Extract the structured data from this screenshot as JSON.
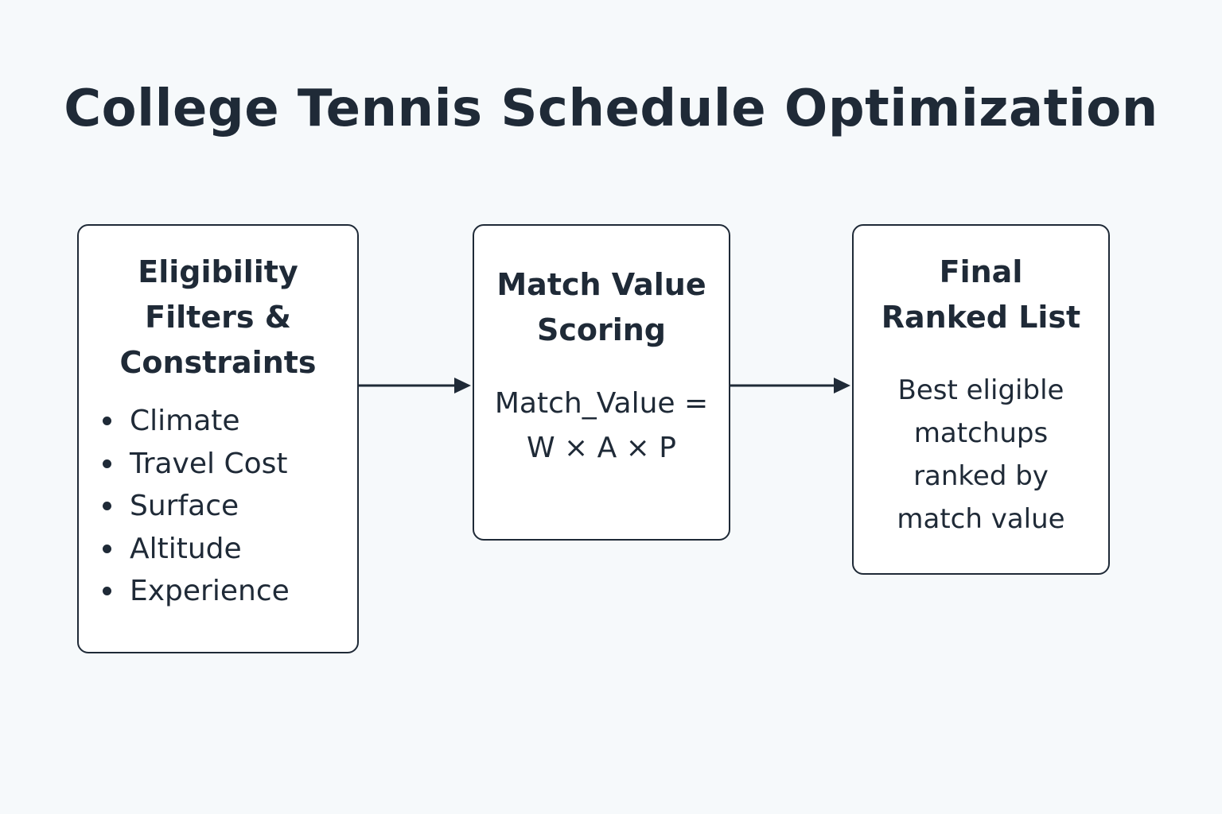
{
  "title": "College Tennis Schedule Optimization",
  "steps": {
    "filters": {
      "title_lines": [
        "Eligibility",
        "Filters &",
        "Constraints"
      ],
      "bullets": [
        "Climate",
        "Travel Cost",
        "Surface",
        "Altitude",
        "Experience"
      ]
    },
    "scoring": {
      "title_lines": [
        "Match Value",
        "Scoring"
      ],
      "formula_lines": [
        "Match_Value =",
        "W × A × P"
      ]
    },
    "ranked": {
      "title_lines": [
        "Final",
        "Ranked List"
      ],
      "description_lines": [
        "Best eligible",
        "matchups",
        "ranked by",
        "match value"
      ]
    }
  },
  "colors": {
    "background": "#f6f9fb",
    "ink": "#1f2a37",
    "box_fill": "#ffffff"
  },
  "icons": [
    "arrow-right-icon",
    "bullet-dot-icon"
  ]
}
